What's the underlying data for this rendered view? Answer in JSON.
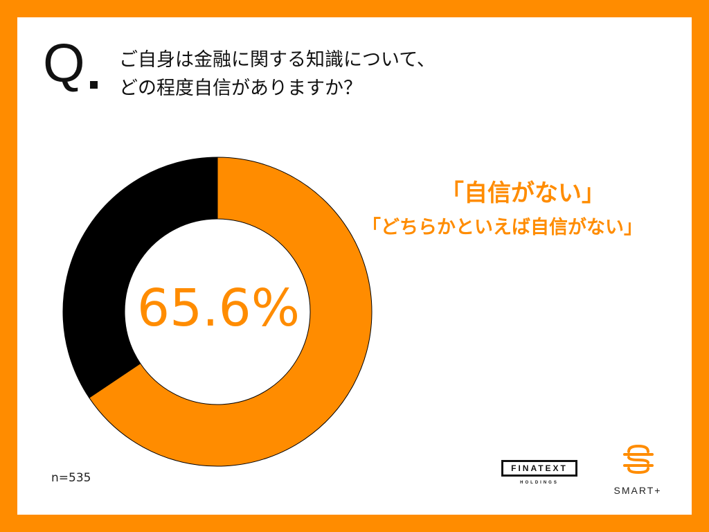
{
  "question": {
    "mark": "Q",
    "line1": "ご自身は金融に関する知識について、",
    "line2": "どの程度自信がありますか？"
  },
  "chart_data": {
    "type": "pie",
    "donut": true,
    "slices": [
      {
        "label": "「自信がない」「どちらかといえば自信がない」",
        "value": 65.6,
        "color": "#FF8C00"
      },
      {
        "label": "",
        "value": 34.4,
        "color": "#000000"
      }
    ],
    "center_label": "65.6%",
    "legend": [
      "「自信がない」",
      "「どちらかといえば自信がない」"
    ]
  },
  "sample_size": "n=535",
  "logos": {
    "finatext_main": "FINATEXT",
    "finatext_sub": "HOLDINGS",
    "smart": "SMART+"
  },
  "colors": {
    "accent": "#FF8C00",
    "dark": "#000000",
    "background": "#FFFFFF"
  }
}
